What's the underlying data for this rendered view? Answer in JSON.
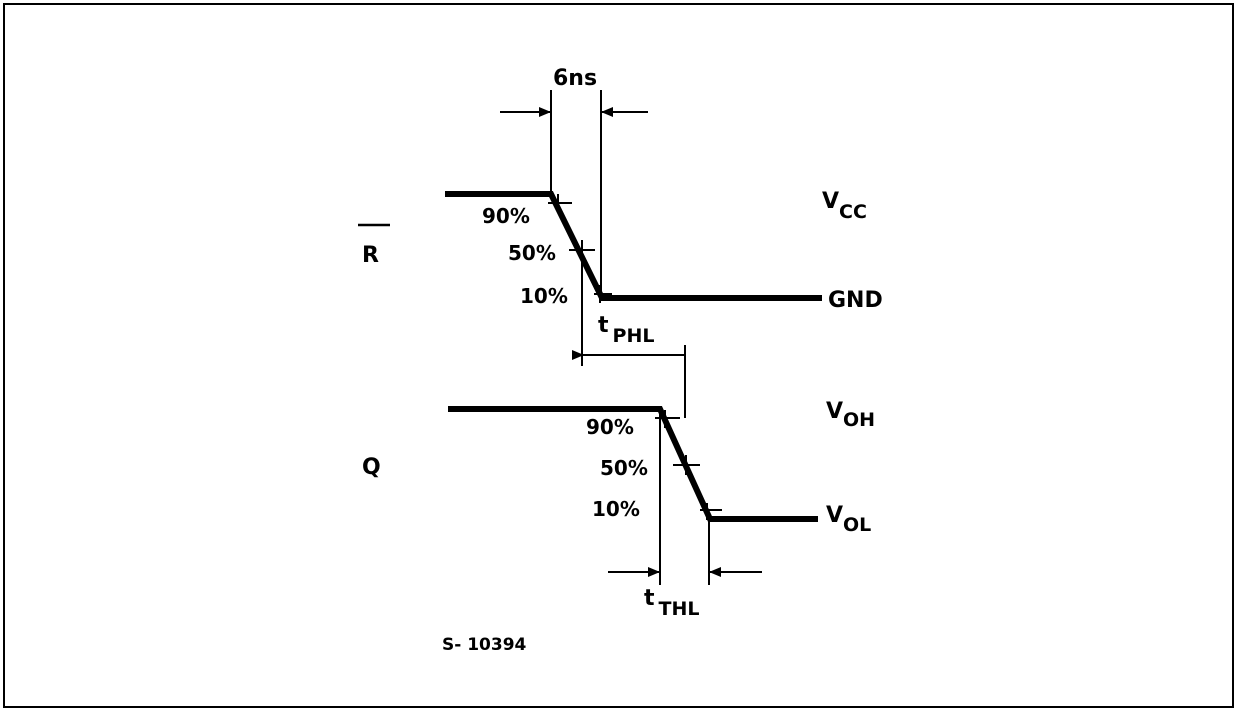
{
  "signals": {
    "r": {
      "name": "R"
    },
    "q": {
      "name": "Q"
    }
  },
  "levels": {
    "vcc": {
      "main": "V",
      "sub": "CC"
    },
    "gnd": "GND",
    "voh": {
      "main": "V",
      "sub": "OH"
    },
    "vol": {
      "main": "V",
      "sub": "OL"
    }
  },
  "percent_marks": {
    "r": [
      "90%",
      "50%",
      "10%"
    ],
    "q": [
      "90%",
      "50%",
      "10%"
    ]
  },
  "timings": {
    "fall_time": "6ns",
    "tphl": {
      "main": "t",
      "sub": "PHL"
    },
    "tthl": {
      "main": "t",
      "sub": "THL"
    }
  },
  "figure_id": "S- 10394"
}
